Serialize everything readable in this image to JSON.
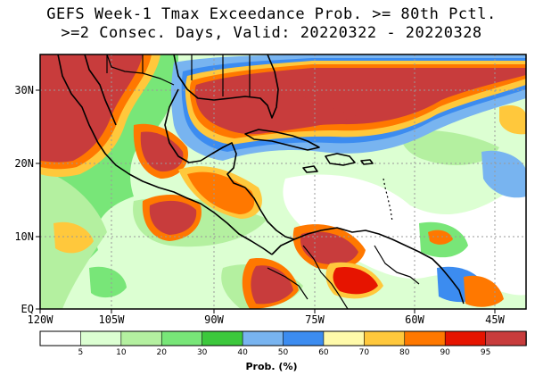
{
  "title_line1": "GEFS Week-1 Tmax Exceedance Prob. >= 80th Pctl.",
  "title_line2": ">=2 Consec. Days, Valid: 20220322 - 20220328",
  "lat_labels": [
    "30N",
    "20N",
    "10N",
    "EQ"
  ],
  "lon_labels": [
    "120W",
    "105W",
    "90W",
    "75W",
    "60W",
    "45W"
  ],
  "colorbar": {
    "colors": [
      "#ffffff",
      "#dcffd2",
      "#b4f0a0",
      "#78e678",
      "#3cc83c",
      "#78b4f0",
      "#3c8cf0",
      "#fffaaa",
      "#ffc83c",
      "#ff7800",
      "#e61400",
      "#c83c3c"
    ],
    "labels": [
      "5",
      "10",
      "20",
      "30",
      "40",
      "50",
      "60",
      "70",
      "80",
      "90",
      "95"
    ],
    "units": "Prob. (%)"
  }
}
